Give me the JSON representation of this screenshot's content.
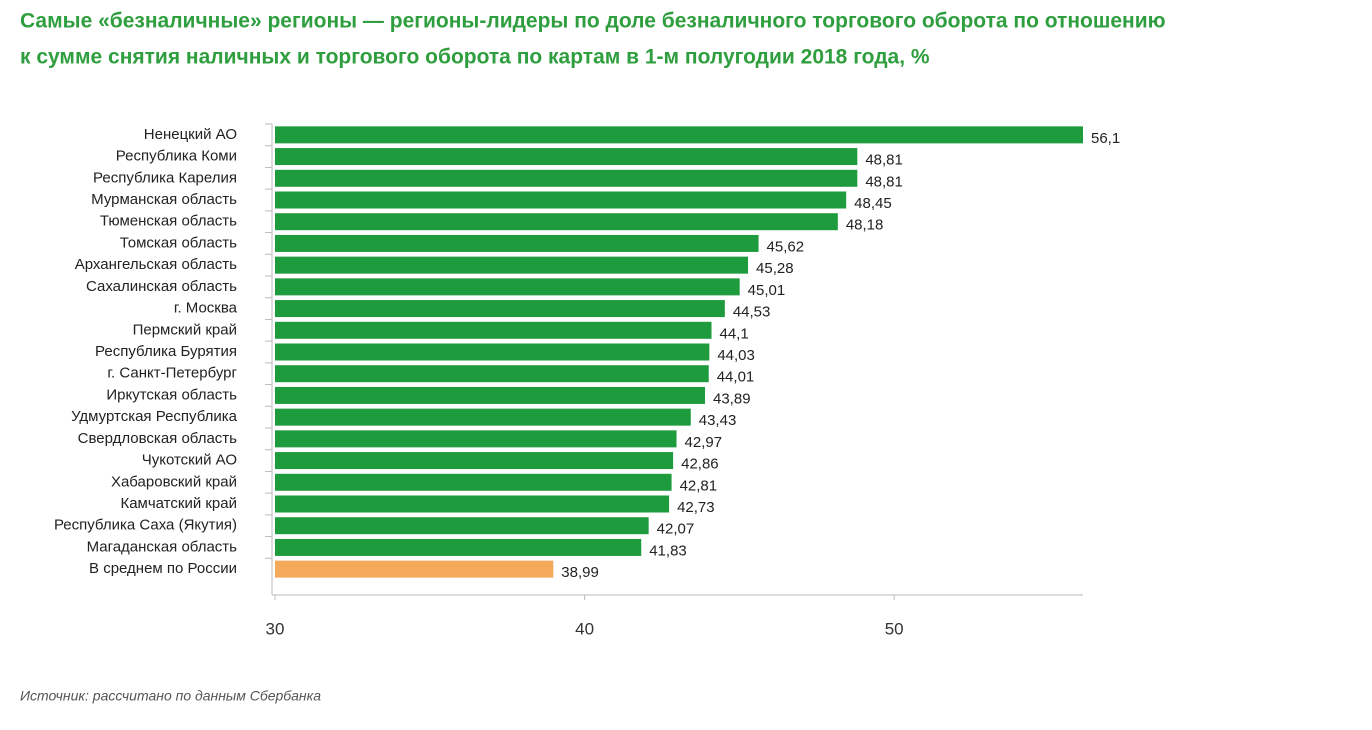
{
  "chart_data": {
    "type": "bar",
    "orientation": "horizontal",
    "title": "Самые «безналичные» регионы — регионы-лидеры по доле безналичного торгового оборота по отношению",
    "subtitle": "к сумме снятия наличных и торгового оборота по картам в 1-м полугодии 2018 года, %",
    "source": "Источник: рассчитано по данным Сбербанка",
    "categories": [
      "Ненецкий АО",
      "Республика Коми",
      "Республика Карелия",
      "Мурманская область",
      "Тюменская область",
      "Томская область",
      "Архангельская область",
      "Сахалинская область",
      "г. Москва",
      "Пермский край",
      "Республика Бурятия",
      "г. Санкт-Петербург",
      "Иркутская область",
      "Удмуртская Республика",
      "Свердловская область",
      "Чукотский АО",
      "Хабаровский край",
      "Камчатский край",
      "Республика Саха (Якутия)",
      "Магаданская область",
      "В среднем по России"
    ],
    "values": [
      56.1,
      48.81,
      48.81,
      48.45,
      48.18,
      45.62,
      45.28,
      45.01,
      44.53,
      44.1,
      44.03,
      44.01,
      43.89,
      43.43,
      42.97,
      42.86,
      42.81,
      42.73,
      42.07,
      41.83,
      38.99
    ],
    "value_labels": [
      "56,1",
      "48,81",
      "48,81",
      "48,45",
      "48,18",
      "45,62",
      "45,28",
      "45,01",
      "44,53",
      "44,1",
      "44,03",
      "44,01",
      "43,89",
      "43,43",
      "42,97",
      "42,86",
      "42,81",
      "42,73",
      "42,07",
      "41,83",
      "38,99"
    ],
    "colors": [
      "#1e9b3c",
      "#1e9b3c",
      "#1e9b3c",
      "#1e9b3c",
      "#1e9b3c",
      "#1e9b3c",
      "#1e9b3c",
      "#1e9b3c",
      "#1e9b3c",
      "#1e9b3c",
      "#1e9b3c",
      "#1e9b3c",
      "#1e9b3c",
      "#1e9b3c",
      "#1e9b3c",
      "#1e9b3c",
      "#1e9b3c",
      "#1e9b3c",
      "#1e9b3c",
      "#1e9b3c",
      "#f5a95b"
    ],
    "xlim": [
      30,
      56.1
    ],
    "xticks": [
      30,
      40,
      50
    ]
  }
}
